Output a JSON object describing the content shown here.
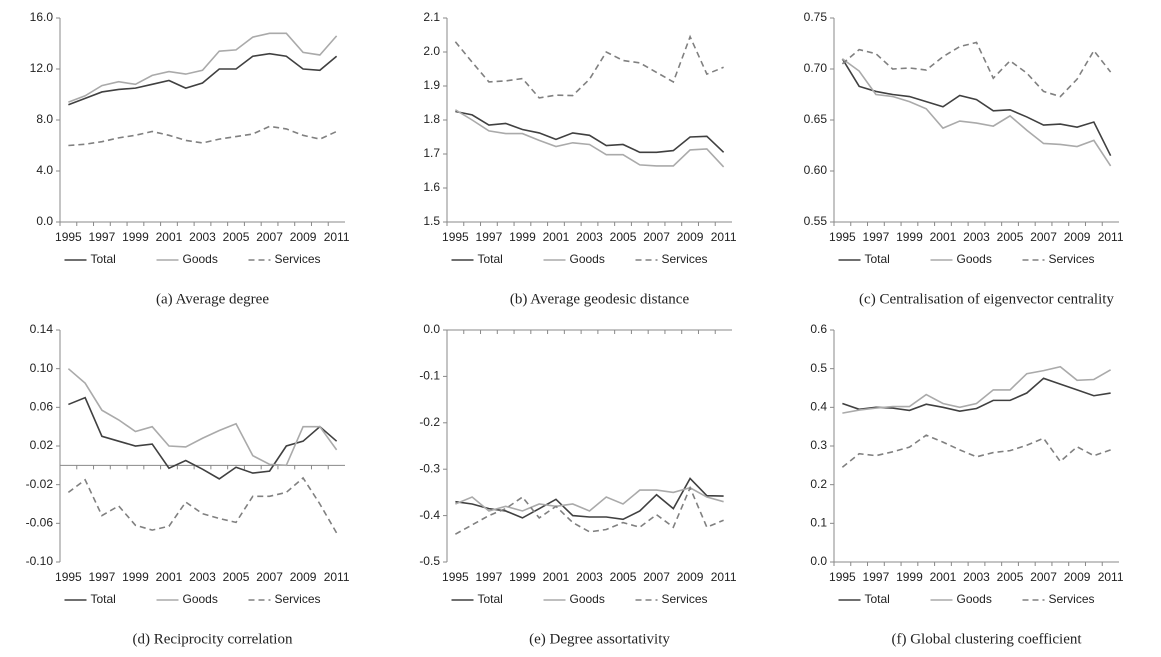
{
  "chart_data": [
    {
      "type": "line",
      "title": "(a)  Average degree",
      "categories": [
        "1995",
        null,
        "1997",
        null,
        "1999",
        null,
        "2001",
        null,
        "2003",
        null,
        "2005",
        null,
        "2007",
        null,
        "2009",
        null,
        "2011"
      ],
      "ylim": [
        0,
        16
      ],
      "yticks": [
        {
          "value": 0,
          "label": "0.0"
        },
        {
          "value": 4,
          "label": "4.0"
        },
        {
          "value": 8,
          "label": "8.0"
        },
        {
          "value": 12,
          "label": "12.0"
        },
        {
          "value": 16,
          "label": "16.0"
        }
      ],
      "series": [
        {
          "name": "Total",
          "color": "#404040",
          "style": "solid",
          "values": [
            9.2,
            9.7,
            10.2,
            10.4,
            10.5,
            10.8,
            11.1,
            10.5,
            10.9,
            12.0,
            12.0,
            13.0,
            13.2,
            13.0,
            12.0,
            11.9,
            13.0
          ]
        },
        {
          "name": "Goods",
          "color": "#aaaaaa",
          "style": "solid",
          "values": [
            9.4,
            9.9,
            10.7,
            11.0,
            10.8,
            11.5,
            11.8,
            11.6,
            11.9,
            13.4,
            13.5,
            14.5,
            14.8,
            14.8,
            13.3,
            13.1,
            14.6
          ]
        },
        {
          "name": "Services",
          "color": "#808080",
          "style": "dashed",
          "values": [
            6.0,
            6.1,
            6.3,
            6.6,
            6.8,
            7.1,
            6.8,
            6.4,
            6.2,
            6.5,
            6.7,
            6.9,
            7.5,
            7.3,
            6.8,
            6.5,
            7.1
          ]
        }
      ]
    },
    {
      "type": "line",
      "title": "(b)  Average geodesic distance",
      "categories": [
        "1995",
        null,
        "1997",
        null,
        "1999",
        null,
        "2001",
        null,
        "2003",
        null,
        "2005",
        null,
        "2007",
        null,
        "2009",
        null,
        "2011"
      ],
      "ylim": [
        1.5,
        2.1
      ],
      "yticks": [
        1.5,
        1.6,
        1.7,
        1.8,
        1.9,
        {
          "value": 2.0,
          "label": "2.0"
        },
        2.1
      ],
      "series": [
        {
          "name": "Total",
          "color": "#404040",
          "style": "solid",
          "values": [
            1.825,
            1.815,
            1.785,
            1.79,
            1.772,
            1.762,
            1.743,
            1.762,
            1.755,
            1.725,
            1.728,
            1.705,
            1.705,
            1.71,
            1.75,
            1.752,
            1.705
          ]
        },
        {
          "name": "Goods",
          "color": "#aaaaaa",
          "style": "solid",
          "values": [
            1.83,
            1.8,
            1.768,
            1.76,
            1.76,
            1.74,
            1.722,
            1.733,
            1.728,
            1.698,
            1.698,
            1.668,
            1.665,
            1.665,
            1.712,
            1.715,
            1.662
          ]
        },
        {
          "name": "Services",
          "color": "#808080",
          "style": "dashed",
          "values": [
            2.03,
            1.97,
            1.912,
            1.915,
            1.922,
            1.865,
            1.873,
            1.872,
            1.92,
            2.0,
            1.975,
            1.968,
            1.94,
            1.912,
            2.045,
            1.935,
            1.955
          ]
        }
      ]
    },
    {
      "type": "line",
      "title": "(c)  Centralisation of eigenvector centrality",
      "categories": [
        "1995",
        null,
        "1997",
        null,
        "1999",
        null,
        "2001",
        null,
        "2003",
        null,
        "2005",
        null,
        "2007",
        null,
        "2009",
        null,
        "2011"
      ],
      "ylim": [
        0.55,
        0.75
      ],
      "yticks": [
        0.55,
        {
          "value": 0.6,
          "label": "0.60"
        },
        0.65,
        {
          "value": 0.7,
          "label": "0.70"
        },
        0.75
      ],
      "series": [
        {
          "name": "Total",
          "color": "#404040",
          "style": "solid",
          "values": [
            0.71,
            0.683,
            0.678,
            0.675,
            0.673,
            0.668,
            0.663,
            0.674,
            0.67,
            0.659,
            0.66,
            0.653,
            0.645,
            0.646,
            0.643,
            0.648,
            0.615
          ]
        },
        {
          "name": "Goods",
          "color": "#aaaaaa",
          "style": "solid",
          "values": [
            0.71,
            0.698,
            0.675,
            0.673,
            0.668,
            0.661,
            0.642,
            0.649,
            0.647,
            0.644,
            0.654,
            0.64,
            0.627,
            0.626,
            0.624,
            0.63,
            0.605
          ]
        },
        {
          "name": "Services",
          "color": "#808080",
          "style": "dashed",
          "values": [
            0.705,
            0.719,
            0.715,
            0.7,
            0.701,
            0.699,
            0.712,
            0.722,
            0.726,
            0.691,
            0.708,
            0.696,
            0.678,
            0.673,
            0.69,
            0.718,
            0.697
          ]
        }
      ]
    },
    {
      "type": "line",
      "title": "(d)  Reciprocity correlation",
      "categories": [
        "1995",
        null,
        "1997",
        null,
        "1999",
        null,
        "2001",
        null,
        "2003",
        null,
        "2005",
        null,
        "2007",
        null,
        "2009",
        null,
        "2011"
      ],
      "ylim": [
        -0.1,
        0.14
      ],
      "yticks": [
        {
          "value": -0.1,
          "label": "-0.10"
        },
        -0.06,
        -0.02,
        0.02,
        0.06,
        {
          "value": 0.1,
          "label": "0.10"
        },
        0.14
      ],
      "series": [
        {
          "name": "Total",
          "color": "#404040",
          "style": "solid",
          "values": [
            0.063,
            0.07,
            0.03,
            0.025,
            0.02,
            0.022,
            -0.003,
            0.005,
            -0.004,
            -0.014,
            -0.002,
            -0.008,
            -0.006,
            0.02,
            0.025,
            0.04,
            0.025
          ]
        },
        {
          "name": "Goods",
          "color": "#aaaaaa",
          "style": "solid",
          "values": [
            0.1,
            0.085,
            0.057,
            0.047,
            0.035,
            0.04,
            0.02,
            0.019,
            0.028,
            0.036,
            0.043,
            0.01,
            0.001,
            0.0,
            0.04,
            0.04,
            0.016
          ]
        },
        {
          "name": "Services",
          "color": "#808080",
          "style": "dashed",
          "values": [
            -0.028,
            -0.015,
            -0.052,
            -0.042,
            -0.062,
            -0.067,
            -0.063,
            -0.038,
            -0.05,
            -0.055,
            -0.059,
            -0.032,
            -0.032,
            -0.028,
            -0.013,
            -0.04,
            -0.07
          ]
        }
      ]
    },
    {
      "type": "line",
      "title": "(e)  Degree assortativity",
      "categories": [
        "1995",
        null,
        "1997",
        null,
        "1999",
        null,
        "2001",
        null,
        "2003",
        null,
        "2005",
        null,
        "2007",
        null,
        "2009",
        null,
        "2011"
      ],
      "ylim": [
        -0.5,
        0
      ],
      "yticks": [
        -0.5,
        -0.4,
        -0.3,
        -0.2,
        -0.1,
        {
          "value": 0,
          "label": "0.0"
        }
      ],
      "series": [
        {
          "name": "Total",
          "color": "#404040",
          "style": "solid",
          "values": [
            -0.37,
            -0.375,
            -0.385,
            -0.39,
            -0.405,
            -0.385,
            -0.365,
            -0.4,
            -0.403,
            -0.403,
            -0.408,
            -0.39,
            -0.355,
            -0.385,
            -0.32,
            -0.357,
            -0.358
          ]
        },
        {
          "name": "Goods",
          "color": "#aaaaaa",
          "style": "solid",
          "values": [
            -0.375,
            -0.36,
            -0.39,
            -0.38,
            -0.39,
            -0.375,
            -0.38,
            -0.375,
            -0.39,
            -0.36,
            -0.375,
            -0.345,
            -0.345,
            -0.35,
            -0.34,
            -0.36,
            -0.37
          ]
        },
        {
          "name": "Services",
          "color": "#808080",
          "style": "dashed",
          "values": [
            -0.44,
            -0.42,
            -0.4,
            -0.385,
            -0.36,
            -0.405,
            -0.38,
            -0.415,
            -0.435,
            -0.43,
            -0.415,
            -0.425,
            -0.398,
            -0.425,
            -0.34,
            -0.425,
            -0.41
          ]
        }
      ]
    },
    {
      "type": "line",
      "title": "(f)  Global clustering coefficient",
      "categories": [
        "1995",
        null,
        "1997",
        null,
        "1999",
        null,
        "2001",
        null,
        "2003",
        null,
        "2005",
        null,
        "2007",
        null,
        "2009",
        null,
        "2011"
      ],
      "ylim": [
        0,
        0.6
      ],
      "yticks": [
        {
          "value": 0,
          "label": "0.0"
        },
        0.1,
        0.2,
        0.3,
        0.4,
        0.5,
        0.6
      ],
      "series": [
        {
          "name": "Total",
          "color": "#404040",
          "style": "solid",
          "values": [
            0.41,
            0.395,
            0.4,
            0.398,
            0.392,
            0.408,
            0.4,
            0.39,
            0.397,
            0.418,
            0.418,
            0.437,
            0.475,
            0.46,
            0.445,
            0.43,
            0.437
          ]
        },
        {
          "name": "Goods",
          "color": "#aaaaaa",
          "style": "solid",
          "values": [
            0.385,
            0.393,
            0.398,
            0.402,
            0.402,
            0.433,
            0.41,
            0.4,
            0.41,
            0.445,
            0.445,
            0.487,
            0.495,
            0.505,
            0.47,
            0.472,
            0.497
          ]
        },
        {
          "name": "Services",
          "color": "#808080",
          "style": "dashed",
          "values": [
            0.245,
            0.28,
            0.275,
            0.285,
            0.297,
            0.328,
            0.31,
            0.29,
            0.272,
            0.283,
            0.288,
            0.302,
            0.32,
            0.26,
            0.298,
            0.275,
            0.29
          ]
        }
      ]
    }
  ]
}
